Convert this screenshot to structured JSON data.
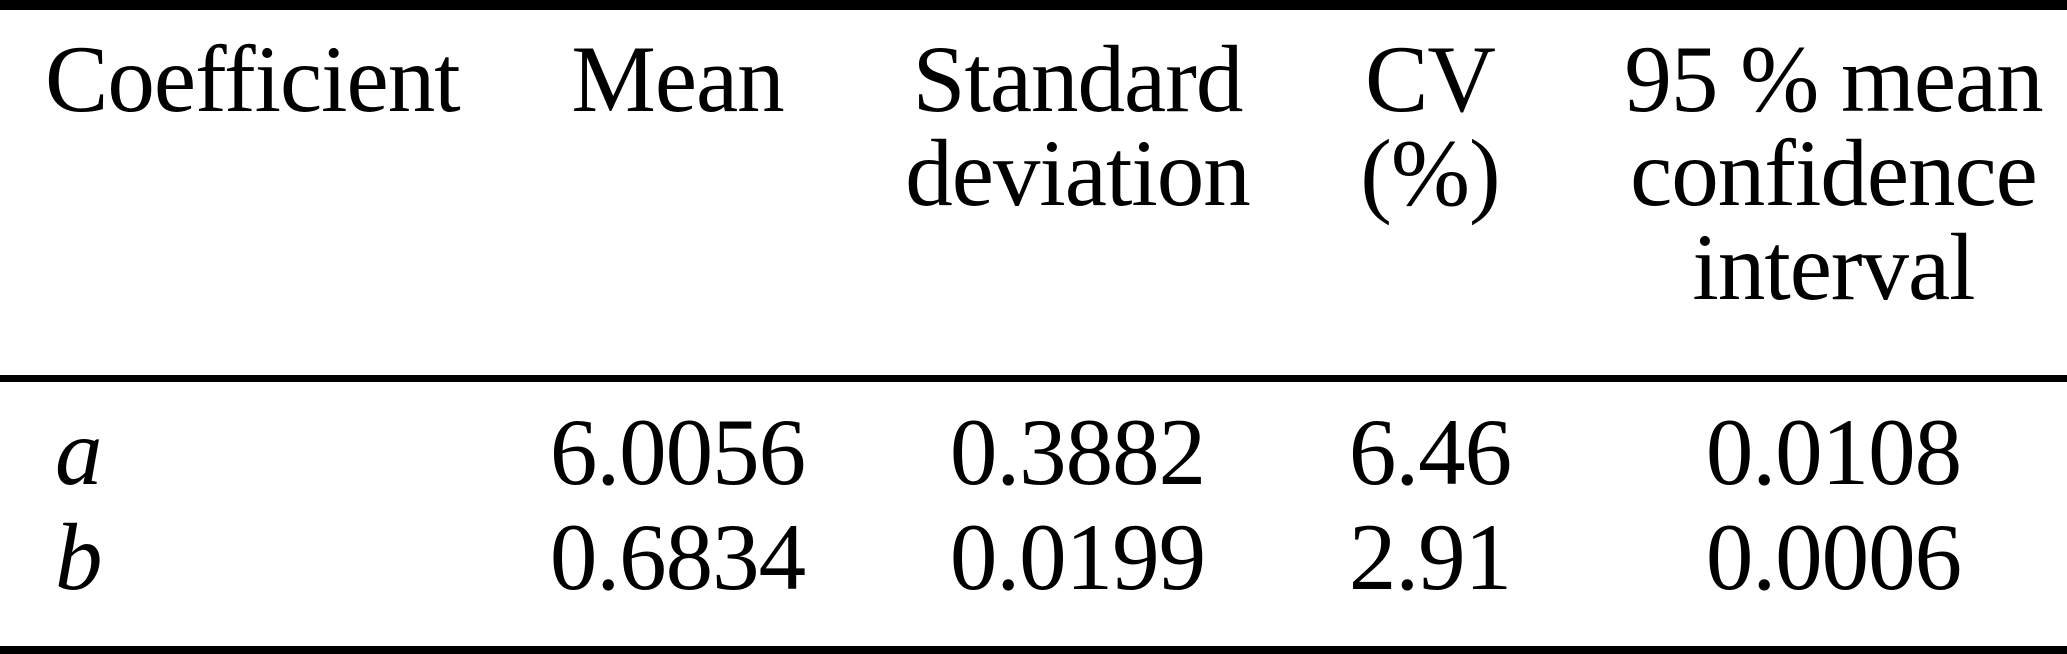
{
  "table": {
    "header": {
      "coefficient": "Coefficient",
      "mean": "Mean",
      "standard_deviation_lines": [
        "Standard",
        "deviation"
      ],
      "cv_lines": [
        "CV",
        "(%)"
      ],
      "confidence_interval_lines": [
        "95 % mean",
        "confidence",
        "interval"
      ]
    },
    "rows": [
      {
        "coefficient": "a",
        "mean": "6.0056",
        "standard_deviation": "0.3882",
        "cv": "6.46",
        "confidence_interval": "0.0108"
      },
      {
        "coefficient": "b",
        "mean": "0.6834",
        "standard_deviation": "0.0199",
        "cv": "2.91",
        "confidence_interval": "0.0006"
      }
    ]
  },
  "colors": {
    "text": "#000000",
    "background": "#ffffff",
    "rule": "#000000"
  }
}
